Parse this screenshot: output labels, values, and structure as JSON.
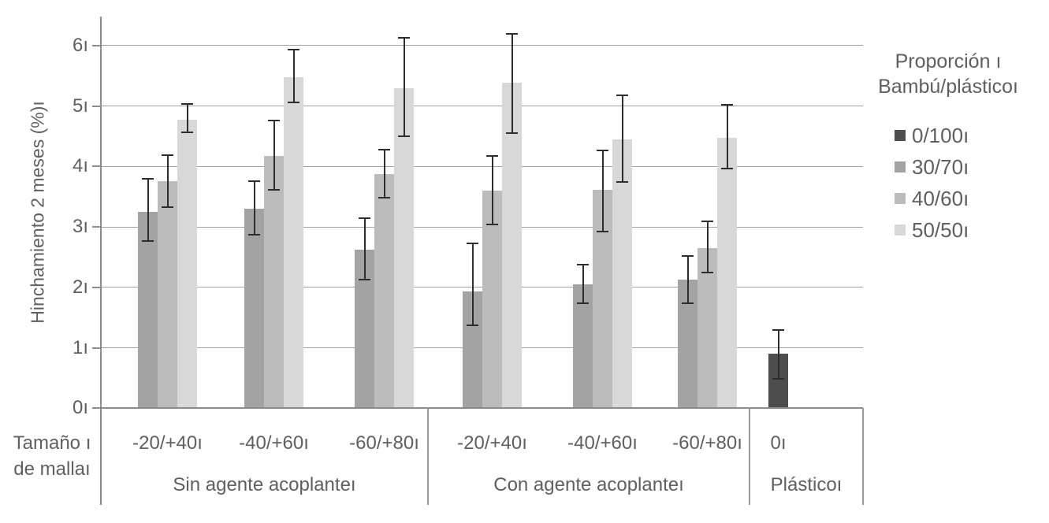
{
  "figure": {
    "y_axis": {
      "label": "Hinchamiento 2 meses (%)ı",
      "tick_labels": [
        "0ı",
        "1ı",
        "2ı",
        "3ı",
        "4ı",
        "5ı",
        "6ı"
      ]
    },
    "x_axis": {
      "corner_label_line1": "Tamaño ı",
      "corner_label_line2": "de mallaı",
      "section_labels": [
        "Sin agente acoplanteı",
        "Con agente acoplanteı",
        "Plásticoı"
      ],
      "mesh_labels": [
        "-20/+40ı",
        "-40/+60ı",
        "-60/+80ı",
        "-20/+40ı",
        "-40/+60ı",
        "-60/+80ı",
        "0ı"
      ]
    },
    "legend": {
      "title_line1": "Proporción ı",
      "title_line2": "Bambú/plásticoı",
      "entries": [
        {
          "label": "0/100ı",
          "color": "#4d4d4d"
        },
        {
          "label": "30/70ı",
          "color": "#a3a3a3"
        },
        {
          "label": "40/60ı",
          "color": "#bcbcbc"
        },
        {
          "label": "50/50ı",
          "color": "#d8d8d8"
        }
      ]
    }
  },
  "chart_data": {
    "type": "bar",
    "title": "",
    "ylabel": "Hinchamiento 2 meses (%)",
    "xlabel": "Tamaño de malla",
    "ylim": [
      0,
      6
    ],
    "grid": true,
    "legend_position": "right",
    "legend_title": "Proporción Bambú/plástico",
    "series_names": [
      "0/100",
      "30/70",
      "40/60",
      "50/50"
    ],
    "palette": {
      "0/100": "#4d4d4d",
      "30/70": "#a3a3a3",
      "40/60": "#bcbcbc",
      "50/50": "#d8d8d8"
    },
    "sections": [
      {
        "label": "Sin agente acoplante",
        "group_indexes": [
          0,
          1,
          2
        ]
      },
      {
        "label": "Con agente acoplante",
        "group_indexes": [
          3,
          4,
          5
        ]
      },
      {
        "label": "Plástico",
        "group_indexes": [
          6
        ]
      }
    ],
    "groups": [
      {
        "section": "Sin agente acoplante",
        "mesh": "-20/+40",
        "bars": [
          {
            "series": "30/70",
            "value": 3.25,
            "err_lo": 2.77,
            "err_hi": 3.8
          },
          {
            "series": "40/60",
            "value": 3.76,
            "err_lo": 3.33,
            "err_hi": 4.19
          },
          {
            "series": "50/50",
            "value": 4.78,
            "err_lo": 4.57,
            "err_hi": 5.04
          }
        ]
      },
      {
        "section": "Sin agente acoplante",
        "mesh": "-40/+60",
        "bars": [
          {
            "series": "30/70",
            "value": 3.3,
            "err_lo": 2.87,
            "err_hi": 3.76
          },
          {
            "series": "40/60",
            "value": 4.17,
            "err_lo": 3.61,
            "err_hi": 4.76
          },
          {
            "series": "50/50",
            "value": 5.48,
            "err_lo": 5.06,
            "err_hi": 5.93
          }
        ]
      },
      {
        "section": "Sin agente acoplante",
        "mesh": "-60/+80",
        "bars": [
          {
            "series": "30/70",
            "value": 2.63,
            "err_lo": 2.13,
            "err_hi": 3.15
          },
          {
            "series": "40/60",
            "value": 3.87,
            "err_lo": 3.48,
            "err_hi": 4.28
          },
          {
            "series": "50/50",
            "value": 5.3,
            "err_lo": 4.5,
            "err_hi": 6.13
          }
        ]
      },
      {
        "section": "Con agente acoplante",
        "mesh": "-20/+40",
        "bars": [
          {
            "series": "30/70",
            "value": 1.93,
            "err_lo": 1.37,
            "err_hi": 2.73
          },
          {
            "series": "40/60",
            "value": 3.6,
            "err_lo": 3.04,
            "err_hi": 4.17
          },
          {
            "series": "50/50",
            "value": 5.39,
            "err_lo": 4.55,
            "err_hi": 6.2
          }
        ]
      },
      {
        "section": "Con agente acoplante",
        "mesh": "-40/+60",
        "bars": [
          {
            "series": "30/70",
            "value": 2.05,
            "err_lo": 1.74,
            "err_hi": 2.37
          },
          {
            "series": "40/60",
            "value": 3.61,
            "err_lo": 2.93,
            "err_hi": 4.26
          },
          {
            "series": "50/50",
            "value": 4.45,
            "err_lo": 3.74,
            "err_hi": 5.18
          }
        ]
      },
      {
        "section": "Con agente acoplante",
        "mesh": "-60/+80",
        "bars": [
          {
            "series": "30/70",
            "value": 2.13,
            "err_lo": 1.74,
            "err_hi": 2.52
          },
          {
            "series": "40/60",
            "value": 2.65,
            "err_lo": 2.24,
            "err_hi": 3.09
          },
          {
            "series": "50/50",
            "value": 4.48,
            "err_lo": 3.96,
            "err_hi": 5.02
          }
        ]
      },
      {
        "section": "Plástico",
        "mesh": "0",
        "bars": [
          {
            "series": "0/100",
            "value": 0.9,
            "err_lo": 0.48,
            "err_hi": 1.3
          }
        ]
      }
    ]
  }
}
